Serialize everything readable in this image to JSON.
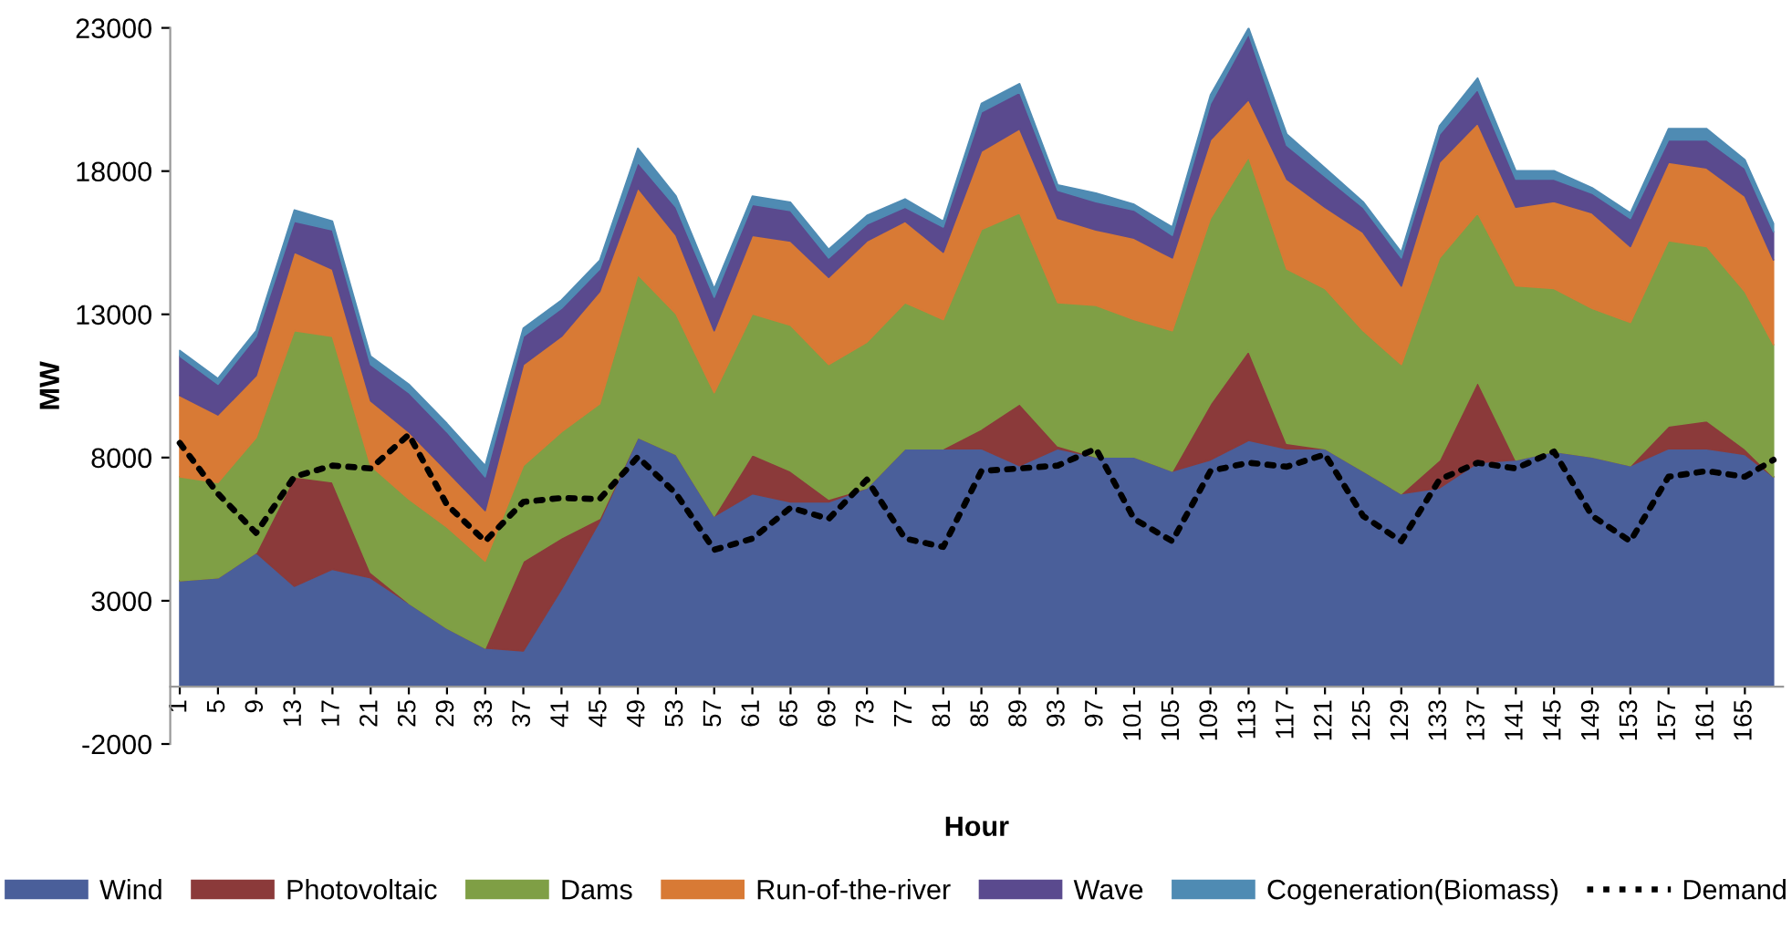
{
  "chart_data": {
    "type": "area",
    "stacked": true,
    "xlabel": "Hour",
    "ylabel": "MW",
    "legend": "bottom",
    "grid": false,
    "x": [
      1,
      5,
      9,
      13,
      17,
      21,
      25,
      29,
      33,
      37,
      41,
      45,
      49,
      53,
      57,
      61,
      65,
      69,
      73,
      77,
      81,
      85,
      89,
      93,
      97,
      101,
      105,
      109,
      113,
      117,
      121,
      125,
      129,
      133,
      137,
      141,
      145,
      149,
      153,
      157,
      161,
      165,
      168
    ],
    "xlim": [
      0,
      169
    ],
    "xticks": [
      1,
      5,
      9,
      13,
      17,
      21,
      25,
      29,
      33,
      37,
      41,
      45,
      49,
      53,
      57,
      61,
      65,
      69,
      73,
      77,
      81,
      85,
      89,
      93,
      97,
      101,
      105,
      109,
      113,
      117,
      121,
      125,
      129,
      133,
      137,
      141,
      145,
      149,
      153,
      157,
      161,
      165
    ],
    "ylim": [
      -2000,
      23000
    ],
    "yticks": [
      -2000,
      3000,
      8000,
      13000,
      18000,
      23000
    ],
    "series": [
      {
        "name": "Wind",
        "color": "#4a5f9a",
        "values": [
          3700,
          3800,
          4680,
          3510,
          4100,
          3800,
          2920,
          2040,
          1350,
          1250,
          3410,
          5780,
          8700,
          8110,
          5960,
          6740,
          6450,
          6450,
          6940,
          8310,
          8310,
          8310,
          7720,
          8310,
          8020,
          8020,
          7530,
          7920,
          8600,
          8310,
          8310,
          7530,
          6740,
          6940,
          7820,
          7920,
          8210,
          8020,
          7720,
          8310,
          8310,
          8110,
          7330
        ]
      },
      {
        "name": "Photovoltaic",
        "color": "#8b3a3a",
        "values": [
          0,
          0,
          0,
          3820,
          3050,
          200,
          0,
          0,
          0,
          3140,
          1790,
          100,
          0,
          0,
          0,
          1370,
          1080,
          100,
          0,
          0,
          0,
          690,
          2160,
          100,
          0,
          0,
          0,
          1960,
          3140,
          190,
          0,
          0,
          0,
          980,
          2840,
          0,
          0,
          0,
          0,
          790,
          980,
          200,
          0
        ]
      },
      {
        "name": "Dams",
        "color": "#7f9f45",
        "values": [
          3630,
          3330,
          4020,
          5100,
          5080,
          3720,
          3630,
          3530,
          3040,
          3330,
          3700,
          4000,
          5690,
          4910,
          4310,
          4910,
          5090,
          4700,
          5090,
          5100,
          4510,
          6960,
          6660,
          5000,
          5290,
          4800,
          4900,
          6470,
          6760,
          6080,
          5590,
          4900,
          4510,
          7050,
          5880,
          6080,
          5690,
          5190,
          5000,
          6470,
          6080,
          5490,
          4610
        ]
      },
      {
        "name": "Run-of-the-river",
        "color": "#d87a35",
        "values": [
          2840,
          2360,
          2160,
          2740,
          2350,
          2260,
          2350,
          1960,
          1760,
          3530,
          3330,
          3920,
          3030,
          2740,
          2160,
          2740,
          2940,
          3040,
          3530,
          2840,
          2350,
          2740,
          2940,
          2940,
          2640,
          2840,
          2540,
          2740,
          2000,
          3140,
          2840,
          3430,
          2740,
          3340,
          3140,
          2740,
          3040,
          3330,
          2650,
          2740,
          2740,
          3330,
          2960
        ]
      },
      {
        "name": "Wave",
        "color": "#5a4a8e",
        "values": [
          1370,
          1070,
          1370,
          1080,
          1370,
          1270,
          1370,
          1370,
          1180,
          980,
          980,
          780,
          890,
          980,
          1170,
          1080,
          1060,
          680,
          590,
          490,
          880,
          1370,
          1280,
          980,
          980,
          980,
          790,
          1270,
          2300,
          1180,
          1080,
          880,
          980,
          980,
          1180,
          980,
          780,
          690,
          980,
          780,
          980,
          980,
          980
        ]
      },
      {
        "name": "Cogeneration(Biomass)",
        "color": "#4f8bb3",
        "values": [
          200,
          200,
          200,
          390,
          300,
          290,
          290,
          290,
          390,
          290,
          290,
          300,
          490,
          390,
          300,
          290,
          290,
          300,
          300,
          290,
          200,
          290,
          290,
          190,
          300,
          200,
          290,
          300,
          200,
          390,
          290,
          190,
          200,
          290,
          390,
          290,
          290,
          190,
          190,
          390,
          390,
          290,
          290
        ]
      },
      {
        "name": "Demand",
        "type": "line",
        "color": "#000000",
        "line_style": "dotted",
        "values": [
          8510,
          6740,
          5370,
          7330,
          7720,
          7620,
          8800,
          6350,
          5080,
          6450,
          6590,
          6550,
          8020,
          6740,
          4780,
          5170,
          6250,
          5860,
          7230,
          5170,
          4880,
          7530,
          7620,
          7720,
          8310,
          5860,
          5080,
          7530,
          7820,
          7680,
          8110,
          5960,
          5080,
          7230,
          7820,
          7620,
          8210,
          5960,
          5080,
          7330,
          7530,
          7330,
          7920
        ]
      }
    ]
  }
}
